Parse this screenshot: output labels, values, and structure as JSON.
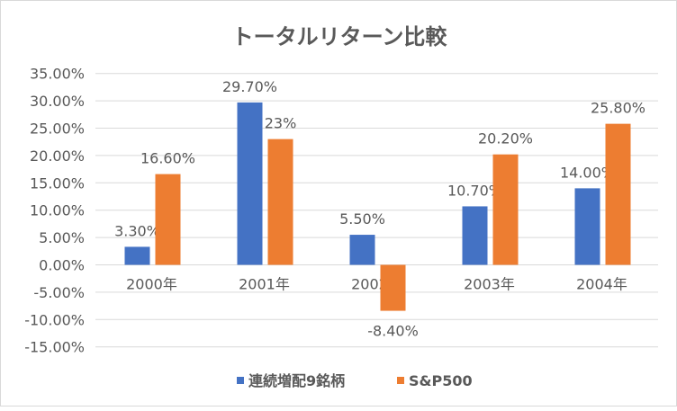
{
  "chart_data": {
    "type": "bar",
    "title": "トータルリターン比較",
    "categories": [
      "2000年",
      "2001年",
      "2002年",
      "2003年",
      "2004年"
    ],
    "series": [
      {
        "name": "連続増配9銘柄",
        "color": "#4472c4",
        "values": [
          3.3,
          29.7,
          5.5,
          10.7,
          14.0
        ],
        "labels": [
          "3.30%",
          "29.70%",
          "5.50%",
          "10.70%",
          "14.00%"
        ]
      },
      {
        "name": "S&P500",
        "color": "#ed7d31",
        "values": [
          16.6,
          23.0,
          -8.4,
          20.2,
          25.8
        ],
        "labels": [
          "16.60%",
          "23%",
          "-8.40%",
          "20.20%",
          "25.80%"
        ]
      }
    ],
    "yticks": [
      "35.00%",
      "30.00%",
      "25.00%",
      "20.00%",
      "15.00%",
      "10.00%",
      "5.00%",
      "0.00%",
      "-5.00%",
      "-10.00%",
      "-15.00%"
    ],
    "ylim": [
      -15,
      35
    ],
    "grid": true,
    "legend": "bottom"
  }
}
